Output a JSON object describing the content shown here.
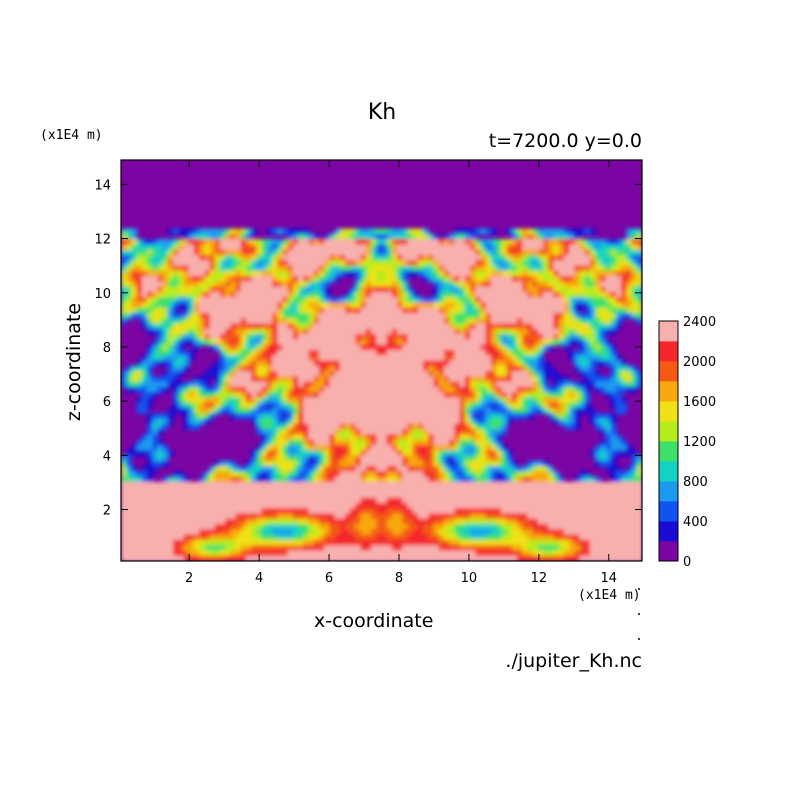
{
  "chart_data": {
    "type": "heatmap",
    "title": "Kh",
    "subtitle": "t=7200.0 y=0.0",
    "xlabel": "x-coordinate",
    "ylabel": "z-coordinate",
    "x_unit": "(x1E4 m)",
    "z_unit": "(x1E4 m)",
    "xlim": [
      0.05,
      14.95
    ],
    "ylim": [
      0.1,
      14.9
    ],
    "x_ticks": [
      2,
      4,
      6,
      8,
      10,
      12,
      14
    ],
    "y_ticks": [
      2,
      4,
      6,
      8,
      10,
      12,
      14
    ],
    "colorbar": {
      "levels": [
        0,
        200,
        400,
        600,
        800,
        1000,
        1200,
        1400,
        1600,
        1800,
        2000,
        2200,
        2400
      ],
      "tick_labels": [
        "0",
        "400",
        "800",
        "1200",
        "1600",
        "2000",
        "2400"
      ],
      "colors": [
        "#7b05a3",
        "#1a0cd4",
        "#1252f0",
        "#1a9bf0",
        "#12d2c4",
        "#3ee06a",
        "#b6ec1e",
        "#f0e016",
        "#f8a80e",
        "#f45a14",
        "#f4282c",
        "#f8b0ae"
      ]
    },
    "source": "./jupiter_Kh.nc"
  }
}
